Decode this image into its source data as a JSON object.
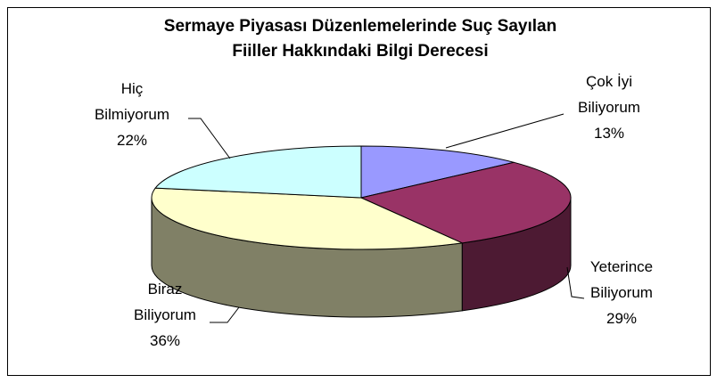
{
  "chart_data": {
    "type": "pie3d",
    "title": "Sermaye Piyasası Düzenlemelerinde Suç Sayılan Fiiller Hakkındaki Bilgi Derecesi",
    "categories": [
      "Çok İyi Biliyorum",
      "Yeterince Biliyorum",
      "Biraz Biliyorum",
      "Hiç Bilmiyorum"
    ],
    "values": [
      13,
      29,
      36,
      22
    ],
    "value_labels": [
      "13%",
      "29%",
      "36%",
      "22%"
    ],
    "colors": [
      "#9999ff",
      "#993366",
      "#ffffcc",
      "#ccffff"
    ]
  }
}
